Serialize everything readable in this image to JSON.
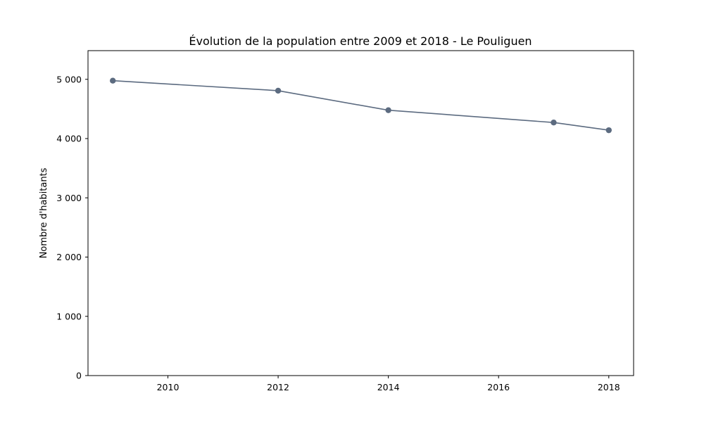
{
  "chart_data": {
    "type": "line",
    "title": "Évolution de la population entre 2009 et 2018 - Le Pouliguen",
    "xlabel": "",
    "ylabel": "Nombre d'habitants",
    "x": [
      2009,
      2012,
      2014,
      2017,
      2018
    ],
    "series": [
      {
        "values": [
          4977,
          4808,
          4479,
          4271,
          4141
        ],
        "color": "#5c6b80"
      }
    ],
    "xlim": [
      2008.55,
      2018.45
    ],
    "ylim": [
      0,
      5484
    ],
    "x_ticks": [
      2010,
      2012,
      2014,
      2016,
      2018
    ],
    "x_tick_labels": [
      "2010",
      "2012",
      "2014",
      "2016",
      "2018"
    ],
    "y_ticks": [
      0,
      1000,
      2000,
      3000,
      4000,
      5000
    ],
    "y_tick_labels": [
      "0",
      "1 000",
      "2 000",
      "3 000",
      "4 000",
      "5 000"
    ],
    "grid": false,
    "legend": "none"
  }
}
